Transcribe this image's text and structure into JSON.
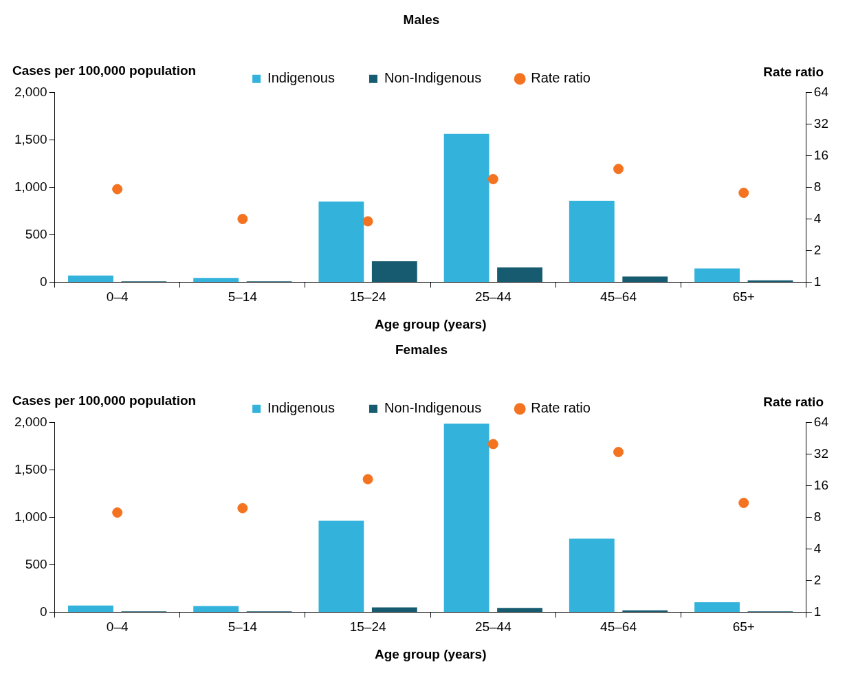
{
  "chart_data": [
    {
      "type": "bar",
      "title": "Males",
      "xlabel": "Age group (years)",
      "ylabel": "Cases per 100,000 population",
      "y2label": "Rate ratio",
      "categories": [
        "0–4",
        "5–14",
        "15–24",
        "25–44",
        "45–64",
        "65+"
      ],
      "series": [
        {
          "name": "Indigenous",
          "color": "#33b2dc",
          "values": [
            70,
            45,
            850,
            1565,
            860,
            145
          ]
        },
        {
          "name": "Non-Indigenous",
          "color": "#175b70",
          "values": [
            8,
            8,
            220,
            155,
            60,
            20
          ]
        },
        {
          "name": "Rate ratio",
          "type": "scatter",
          "axis": "y2",
          "marker": "circle",
          "color": "#f47321",
          "values": [
            7.7,
            4.0,
            3.8,
            9.6,
            12,
            7.1
          ]
        }
      ],
      "ylim": [
        0,
        2000
      ],
      "yticks": [
        {
          "value": 0,
          "label": "0"
        },
        {
          "value": 500,
          "label": "500"
        },
        {
          "value": 1000,
          "label": "1,000"
        },
        {
          "value": 1500,
          "label": "1,500"
        },
        {
          "value": 2000,
          "label": "2,000"
        }
      ],
      "y2lim": [
        1,
        64
      ],
      "y2ticks": [
        1,
        2,
        4,
        8,
        16,
        32,
        64
      ],
      "log": "y2",
      "grid": false,
      "legend": "top"
    },
    {
      "type": "bar",
      "title": "Females",
      "xlabel": "Age group (years)",
      "ylabel": "Cases per 100,000 population",
      "y2label": "Rate ratio",
      "categories": [
        "0–4",
        "5–14",
        "15–24",
        "25–44",
        "45–64",
        "65+"
      ],
      "series": [
        {
          "name": "Indigenous",
          "color": "#33b2dc",
          "values": [
            70,
            65,
            965,
            1990,
            775,
            105
          ]
        },
        {
          "name": "Non-Indigenous",
          "color": "#175b70",
          "values": [
            8,
            8,
            50,
            45,
            20,
            8
          ]
        },
        {
          "name": "Rate ratio",
          "type": "scatter",
          "axis": "y2",
          "marker": "circle",
          "color": "#f47321",
          "values": [
            8.9,
            9.8,
            18.5,
            40,
            33.6,
            11
          ]
        }
      ],
      "ylim": [
        0,
        2000
      ],
      "yticks": [
        {
          "value": 0,
          "label": "0"
        },
        {
          "value": 500,
          "label": "500"
        },
        {
          "value": 1000,
          "label": "1,000"
        },
        {
          "value": 1500,
          "label": "1,500"
        },
        {
          "value": 2000,
          "label": "2,000"
        }
      ],
      "y2lim": [
        1,
        64
      ],
      "y2ticks": [
        1,
        2,
        4,
        8,
        16,
        32,
        64
      ],
      "log": "y2",
      "grid": false,
      "legend": "top"
    }
  ]
}
